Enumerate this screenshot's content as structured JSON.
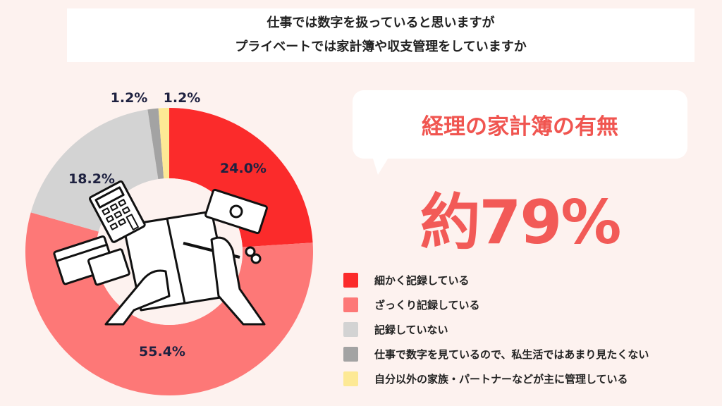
{
  "header": {
    "line1": "仕事では数字を扱っていると思いますが",
    "line2": "プライベートでは家計簿や収支管理をしていますか"
  },
  "callout": {
    "headline": "経理の家計簿の有無",
    "value": "約79%"
  },
  "chart_data": {
    "type": "pie",
    "variant": "donut",
    "start": "top, clockwise",
    "legend_position": "right",
    "series": [
      {
        "name": "細かく記録している",
        "value": 24.0,
        "label": "24.0%",
        "color": "#fb2b2b"
      },
      {
        "name": "ざっくり記録している",
        "value": 55.4,
        "label": "55.4%",
        "color": "#fd7877"
      },
      {
        "name": "記録していない",
        "value": 18.2,
        "label": "18.2%",
        "color": "#d3d3d3"
      },
      {
        "name": "仕事で数字を見ているので、私生活ではあまり見たくない",
        "value": 1.2,
        "label": "1.2%",
        "color": "#a3a3a3"
      },
      {
        "name": "自分以外の家族・パートナーなどが主に管理している",
        "value": 1.2,
        "label": "1.2%",
        "color": "#fde995"
      }
    ]
  }
}
